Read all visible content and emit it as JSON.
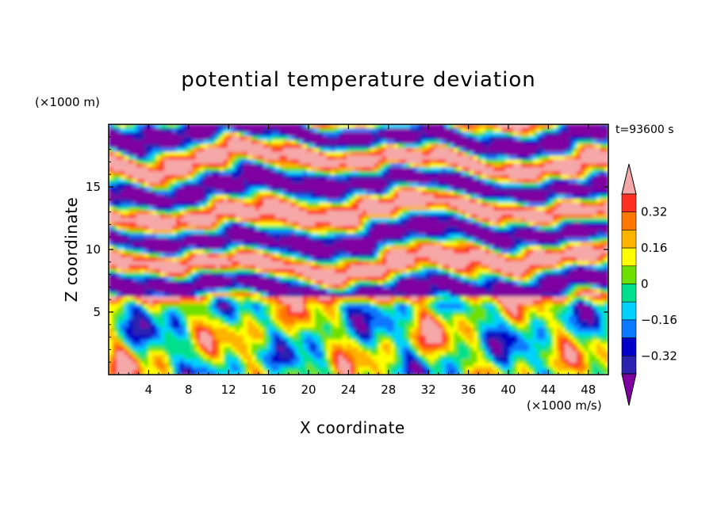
{
  "chart_data": {
    "type": "heatmap",
    "title": "potential temperature deviation",
    "xlabel": "X coordinate",
    "ylabel": "Z coordinate",
    "x_unit": "(×1000 m/s)",
    "y_unit": "(×1000 m)",
    "time_label": "t=93600 s",
    "x_ticks": [
      4,
      8,
      12,
      16,
      20,
      24,
      28,
      32,
      36,
      40,
      44,
      48
    ],
    "y_ticks": [
      5,
      10,
      15
    ],
    "xlim": [
      0,
      50
    ],
    "ylim": [
      0,
      20
    ],
    "colorbar": {
      "orientation": "vertical",
      "placement": "right",
      "extend": "both",
      "tick_labels": [
        "0.32",
        "0.16",
        "0",
        "−0.16",
        "−0.32"
      ],
      "tick_values": [
        0.32,
        0.16,
        0,
        -0.16,
        -0.32
      ],
      "levels": [
        -0.4,
        -0.32,
        -0.24,
        -0.16,
        -0.08,
        0,
        0.08,
        0.16,
        0.24,
        0.32,
        0.4
      ],
      "colors": [
        "#7f00a0",
        "#2c22b0",
        "#0000c8",
        "#0a78ff",
        "#00d2ff",
        "#00e08c",
        "#6ee000",
        "#ffff00",
        "#ffb400",
        "#ff7800",
        "#ff3020",
        "#f5a8a8"
      ]
    },
    "field_description_rows": [
      {
        "z_range": [
          0,
          6.5
        ],
        "pattern": "mixed warm/cool turbulent plumes"
      },
      {
        "z_range": [
          6.5,
          20
        ],
        "pattern": "alternating layers of -0.4 (purple) and +0.4 (pink)"
      }
    ]
  }
}
